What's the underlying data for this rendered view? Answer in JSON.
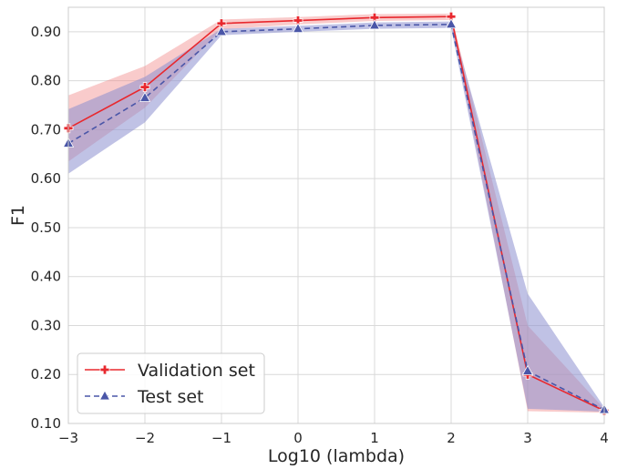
{
  "chart_data": {
    "type": "line",
    "title": "",
    "xlabel": "Log10 (lambda)",
    "ylabel": "F1",
    "x": [
      -3,
      -2,
      -1,
      0,
      1,
      2,
      3,
      4
    ],
    "xlim": [
      -3,
      4
    ],
    "ylim": [
      0.1,
      0.95
    ],
    "grid": true,
    "legend_position": "bottom-left",
    "xticks": [
      -3,
      -2,
      -1,
      0,
      1,
      2,
      3,
      4
    ],
    "xtick_labels": [
      "−3",
      "−2",
      "−1",
      "0",
      "1",
      "2",
      "3",
      "4"
    ],
    "yticks": [
      0.1,
      0.2,
      0.3,
      0.4,
      0.5,
      0.6,
      0.7,
      0.8,
      0.9
    ],
    "ytick_labels": [
      "0.10",
      "0.20",
      "0.30",
      "0.40",
      "0.50",
      "0.60",
      "0.70",
      "0.80",
      "0.90"
    ],
    "series": [
      {
        "name": "Validation set",
        "color": "#e8282e",
        "band_color": "#f28b8b",
        "line_style": "solid",
        "marker": "plus",
        "values": [
          0.703,
          0.787,
          0.917,
          0.923,
          0.929,
          0.931,
          0.2,
          0.126
        ],
        "lower": [
          0.635,
          0.745,
          0.905,
          0.915,
          0.922,
          0.924,
          0.125,
          0.122
        ],
        "upper": [
          0.77,
          0.83,
          0.925,
          0.93,
          0.936,
          0.937,
          0.3,
          0.13
        ]
      },
      {
        "name": "Test set",
        "color": "#4a56a8",
        "band_color": "#8c8fd0",
        "line_style": "dashed",
        "marker": "triangle",
        "values": [
          0.672,
          0.765,
          0.9,
          0.906,
          0.913,
          0.915,
          0.207,
          0.128
        ],
        "lower": [
          0.61,
          0.715,
          0.893,
          0.9,
          0.906,
          0.908,
          0.13,
          0.124
        ],
        "upper": [
          0.742,
          0.808,
          0.906,
          0.912,
          0.919,
          0.921,
          0.365,
          0.133
        ]
      }
    ]
  }
}
